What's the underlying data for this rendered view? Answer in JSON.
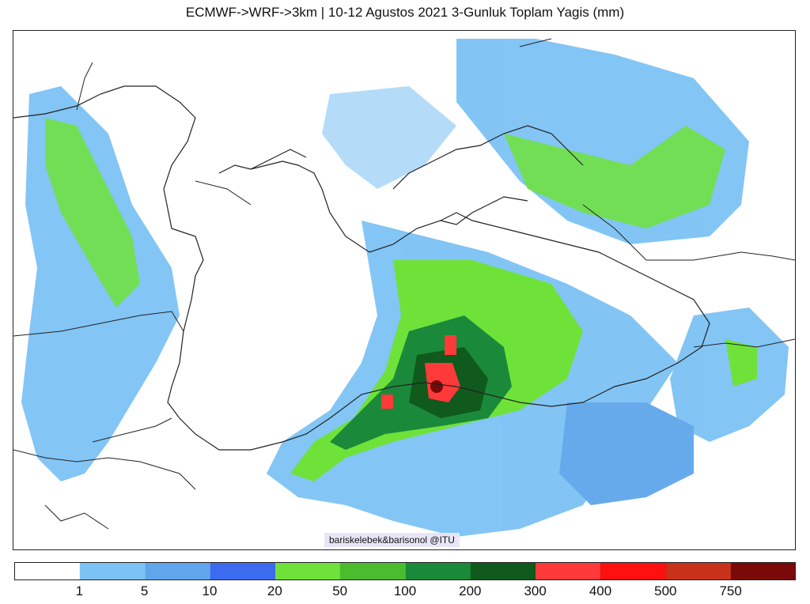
{
  "title": "ECMWF->WRF->3km | 10-12 Agustos 2021 3-Gunluk Toplam Yagis (mm)",
  "credit": "bariskelebek&barisonol @ITU",
  "colorbar": {
    "colors": [
      "#ffffff",
      "#7cc2f4",
      "#5fa6ec",
      "#3c6bf0",
      "#6fe23a",
      "#4cbc2f",
      "#1a8a3a",
      "#0f5a1c",
      "#ff3a3a",
      "#ff1010",
      "#c8321a",
      "#7a0a0a"
    ],
    "labels": [
      "1",
      "5",
      "10",
      "20",
      "50",
      "100",
      "200",
      "300",
      "400",
      "500",
      "750"
    ]
  }
}
